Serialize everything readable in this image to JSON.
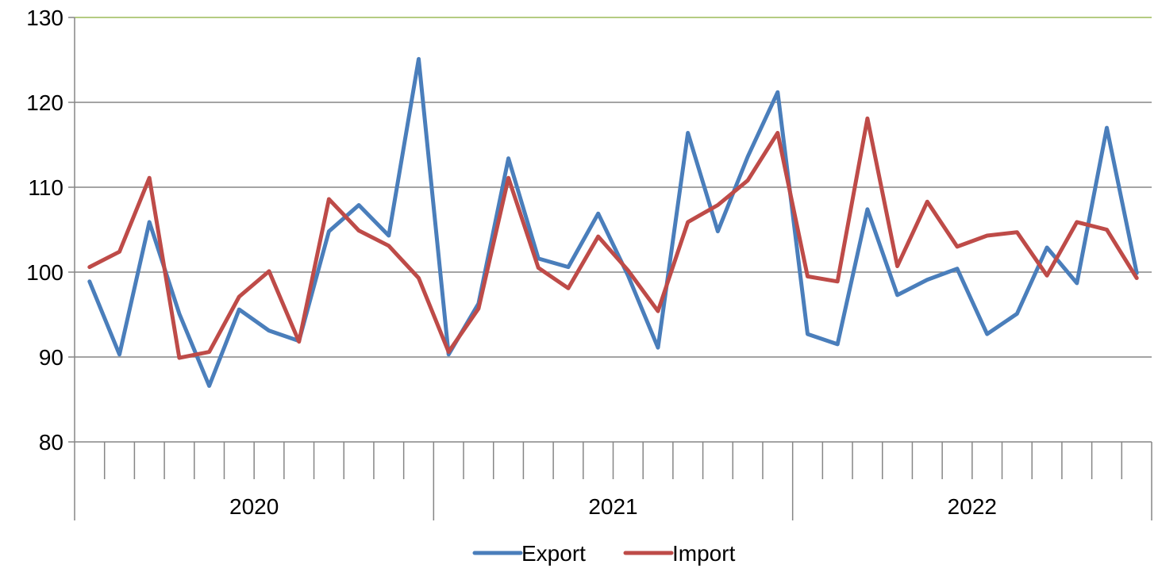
{
  "chart_data": {
    "type": "line",
    "title": "",
    "xlabel": "",
    "ylabel": "",
    "ylim": [
      80,
      130
    ],
    "yticks": [
      80,
      90,
      100,
      110,
      120,
      130
    ],
    "grid": true,
    "legend_position": "bottom",
    "years": [
      "2020",
      "2021",
      "2022"
    ],
    "months_per_year": 12,
    "categories": [
      "2020-01",
      "2020-02",
      "2020-03",
      "2020-04",
      "2020-05",
      "2020-06",
      "2020-07",
      "2020-08",
      "2020-09",
      "2020-10",
      "2020-11",
      "2020-12",
      "2021-01",
      "2021-02",
      "2021-03",
      "2021-04",
      "2021-05",
      "2021-06",
      "2021-07",
      "2021-08",
      "2021-09",
      "2021-10",
      "2021-11",
      "2021-12",
      "2022-01",
      "2022-02",
      "2022-03",
      "2022-04",
      "2022-05",
      "2022-06",
      "2022-07",
      "2022-08",
      "2022-09",
      "2022-10",
      "2022-11",
      "2022-12"
    ],
    "series": [
      {
        "name": "Export",
        "color": "#4a7ebb",
        "values": [
          98.9,
          90.3,
          105.9,
          95.1,
          86.6,
          95.6,
          93.1,
          91.9,
          104.8,
          107.9,
          104.3,
          125.1,
          90.3,
          96.3,
          113.4,
          101.6,
          100.6,
          106.9,
          99.6,
          91.1,
          116.4,
          104.8,
          113.6,
          121.2,
          92.7,
          91.5,
          107.4,
          97.3,
          99.1,
          100.4,
          92.7,
          95.1,
          102.9,
          98.7,
          117.0,
          99.9
        ]
      },
      {
        "name": "Import",
        "color": "#be4b48",
        "values": [
          100.6,
          102.4,
          111.1,
          89.9,
          90.6,
          97.1,
          100.1,
          91.8,
          108.6,
          104.9,
          103.1,
          99.3,
          90.6,
          95.7,
          111.1,
          100.5,
          98.1,
          104.2,
          100.2,
          95.4,
          105.9,
          107.9,
          110.8,
          116.4,
          99.5,
          98.9,
          118.1,
          100.7,
          108.3,
          103.0,
          104.3,
          104.7,
          99.6,
          105.9,
          105.0,
          99.3
        ]
      }
    ]
  }
}
